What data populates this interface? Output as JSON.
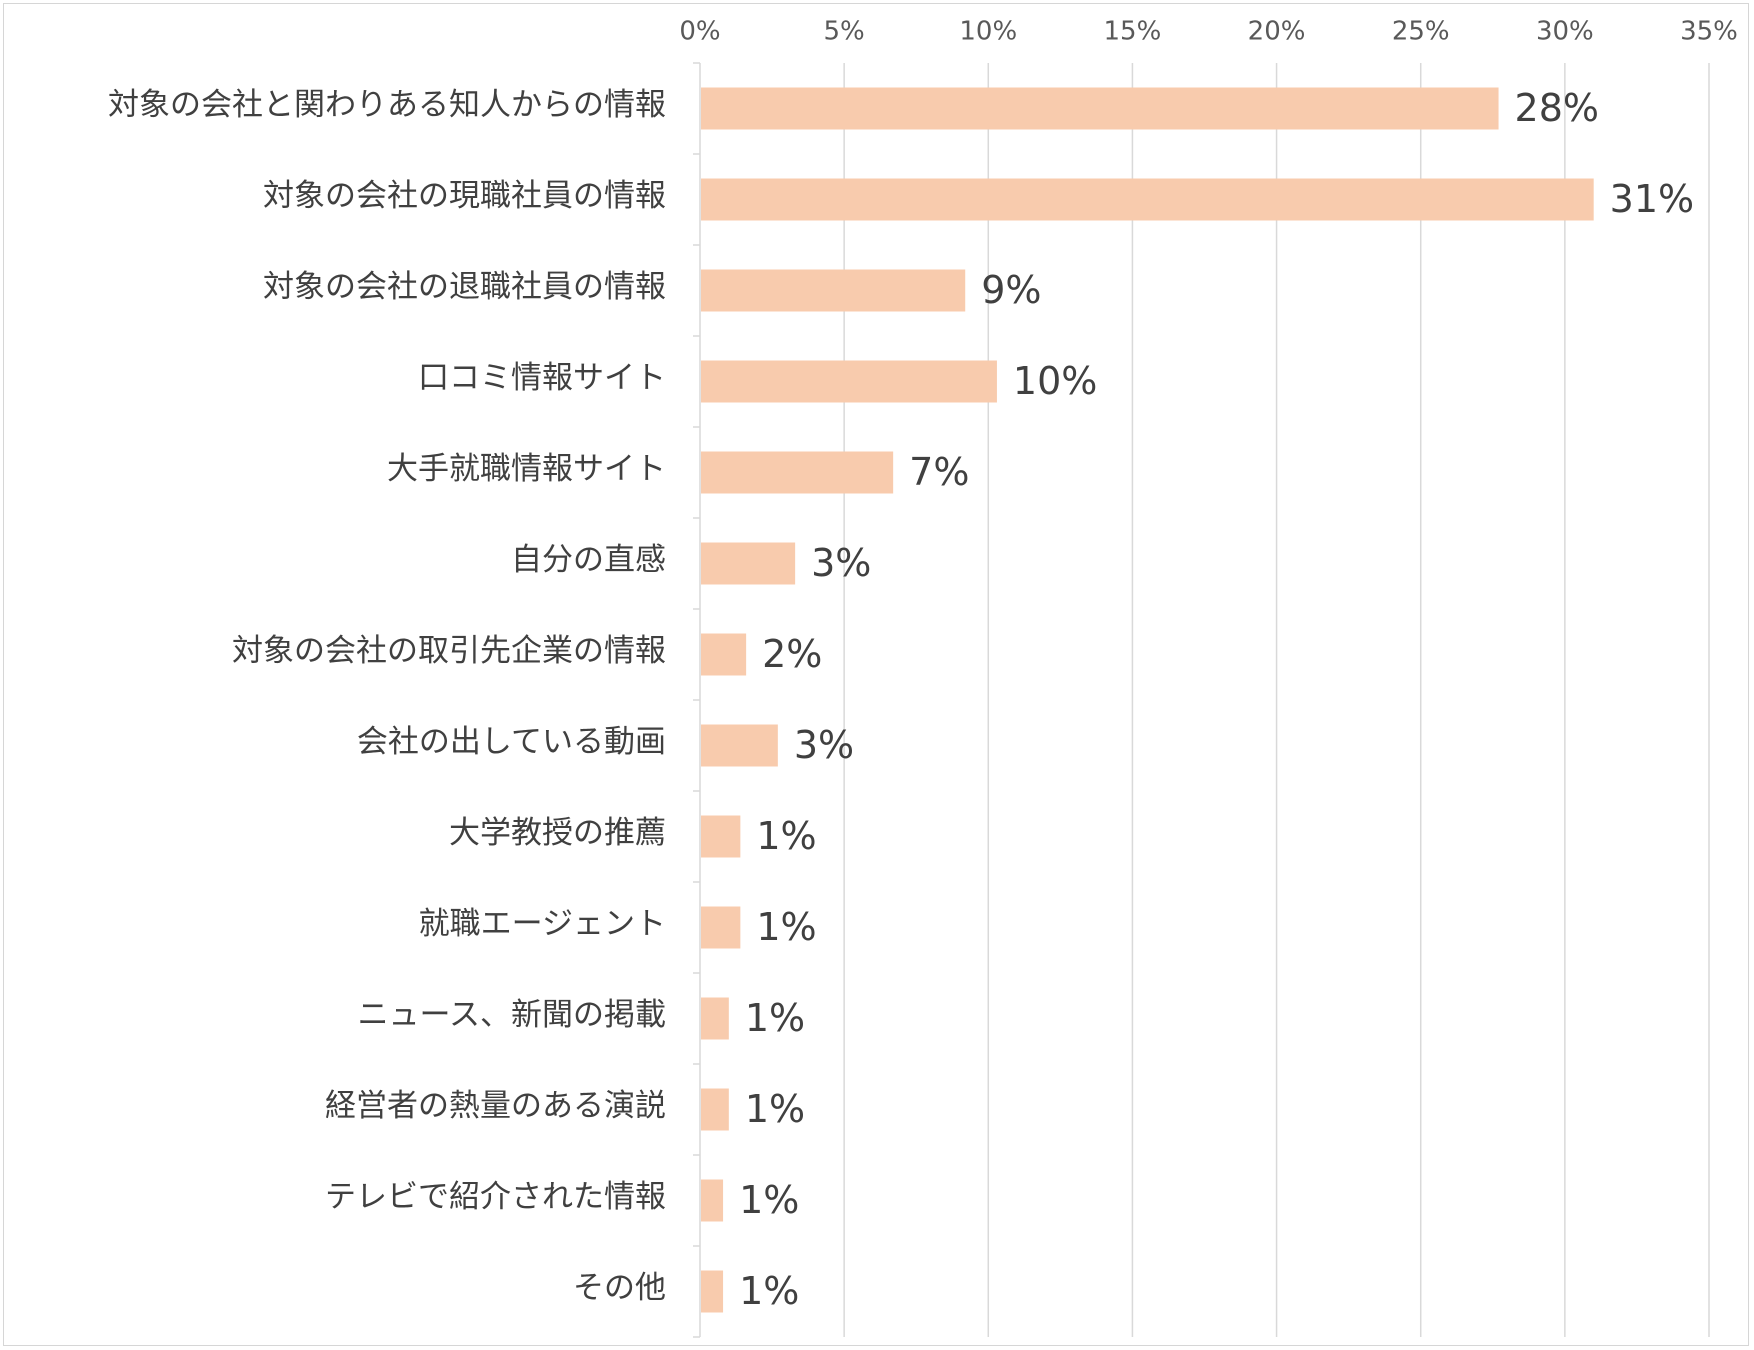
{
  "chart_data": {
    "type": "bar",
    "orientation": "horizontal",
    "categories": [
      "対象の会社と関わりある知人からの情報",
      "対象の会社の現職社員の情報",
      "対象の会社の退職社員の情報",
      "口コミ情報サイト",
      "大手就職情報サイト",
      "自分の直感",
      "対象の会社の取引先企業の情報",
      "会社の出している動画",
      "大学教授の推薦",
      "就職エージェント",
      "ニュース、新聞の掲載",
      "経営者の熱量のある演説",
      "テレビで紹介された情報",
      "その他"
    ],
    "values": [
      27.7,
      31.0,
      9.2,
      10.3,
      6.7,
      3.3,
      1.6,
      2.7,
      1.4,
      1.4,
      1.0,
      1.0,
      0.8,
      0.8
    ],
    "data_labels": [
      "28%",
      "31%",
      "9%",
      "10%",
      "7%",
      "3%",
      "2%",
      "3%",
      "1%",
      "1%",
      "1%",
      "1%",
      "1%",
      "1%"
    ],
    "xlim": [
      0,
      35
    ],
    "x_ticks": [
      "0%",
      "5%",
      "10%",
      "15%",
      "20%",
      "25%",
      "30%",
      "35%"
    ],
    "x_axis_position": "top",
    "gridlines": true,
    "legend": "none",
    "bar_color": "#F8CBAD",
    "gridline_color": "#D9D9D9"
  }
}
